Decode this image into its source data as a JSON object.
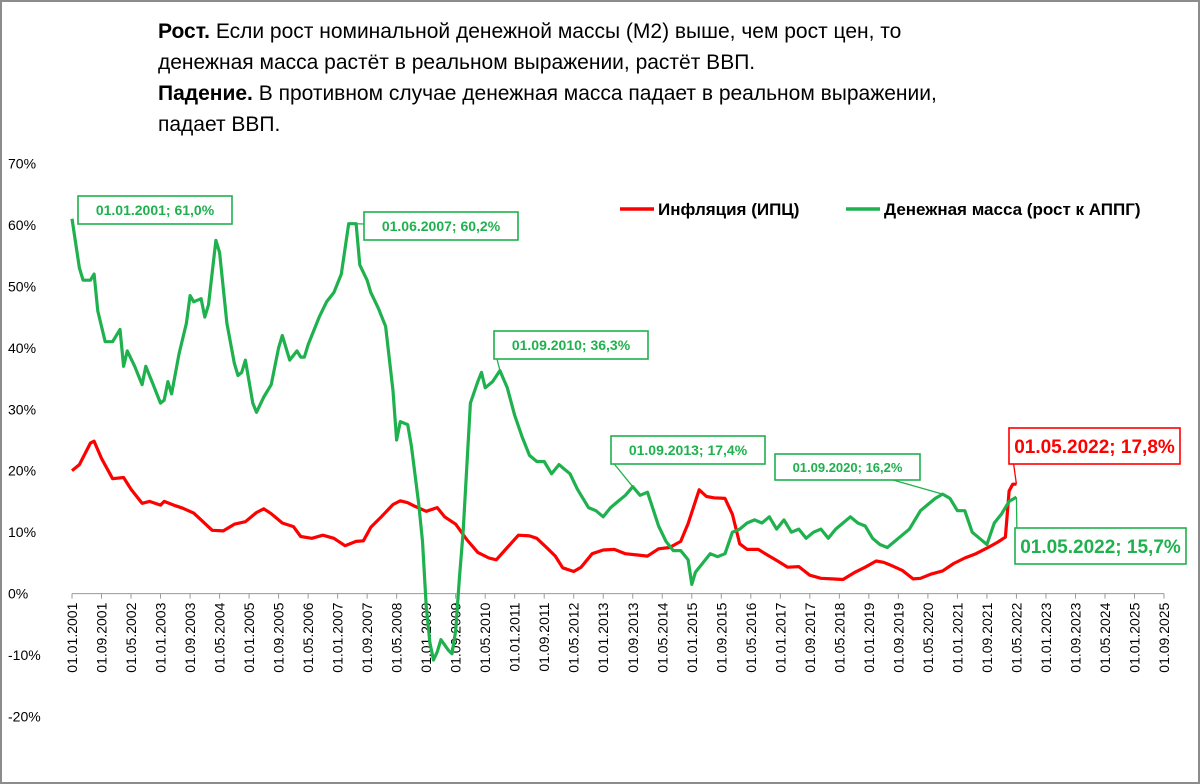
{
  "heading": {
    "growth_label": "Рост.",
    "growth_line1": " Если рост номинальной денежной массы (М2) выше, чем рост цен,  то",
    "growth_line2": "денежная масса растёт в реальном выражении, растёт ВВП.",
    "fall_label": "Падение.",
    "fall_line1": " В противном случае денежная масса падает в реальном выражении,",
    "fall_line2": "падает ВВП."
  },
  "colors": {
    "inflation": "#ff0000",
    "money": "#1fb14e",
    "frame": "#8c8c8c"
  },
  "chart_data": {
    "type": "line",
    "title": "",
    "xlabel": "",
    "ylabel": "",
    "ylim": [
      -20,
      70
    ],
    "y_ticks": [
      "70%",
      "60%",
      "50%",
      "40%",
      "30%",
      "20%",
      "10%",
      "0%",
      "-10%",
      "-20%"
    ],
    "x_ticks": [
      "01.01.2001",
      "01.09.2001",
      "01.05.2002",
      "01.01.2003",
      "01.09.2003",
      "01.05.2004",
      "01.01.2005",
      "01.09.2005",
      "01.05.2006",
      "01.01.2007",
      "01.09.2007",
      "01.05.2008",
      "01.01.2009",
      "01.09.2009",
      "01.05.2010",
      "01.01.2011",
      "01.09.2011",
      "01.05.2012",
      "01.01.2013",
      "01.09.2013",
      "01.05.2014",
      "01.01.2015",
      "01.09.2015",
      "01.05.2016",
      "01.01.2017",
      "01.09.2017",
      "01.05.2018",
      "01.01.2019",
      "01.09.2019",
      "01.05.2020",
      "01.01.2021",
      "01.09.2021",
      "01.05.2022",
      "01.01.2023",
      "01.09.2023",
      "01.05.2024",
      "01.01.2025",
      "01.09.2025"
    ],
    "legend_position": "top-right",
    "series": [
      {
        "name": "Инфляция (ИПЦ)",
        "color": "#ff0000",
        "points": [
          [
            "2001-01",
            20.0
          ],
          [
            "2001-03",
            21.0
          ],
          [
            "2001-06",
            24.5
          ],
          [
            "2001-07",
            24.8
          ],
          [
            "2001-09",
            22.0
          ],
          [
            "2001-12",
            18.7
          ],
          [
            "2002-03",
            18.9
          ],
          [
            "2002-05",
            17.0
          ],
          [
            "2002-08",
            14.7
          ],
          [
            "2002-10",
            15.0
          ],
          [
            "2003-01",
            14.4
          ],
          [
            "2003-02",
            15.0
          ],
          [
            "2003-05",
            14.3
          ],
          [
            "2003-07",
            13.9
          ],
          [
            "2003-10",
            13.1
          ],
          [
            "2003-12",
            12.0
          ],
          [
            "2004-03",
            10.3
          ],
          [
            "2004-06",
            10.2
          ],
          [
            "2004-09",
            11.3
          ],
          [
            "2004-12",
            11.7
          ],
          [
            "2005-03",
            13.2
          ],
          [
            "2005-05",
            13.8
          ],
          [
            "2005-07",
            13.0
          ],
          [
            "2005-10",
            11.5
          ],
          [
            "2006-01",
            10.9
          ],
          [
            "2006-03",
            9.3
          ],
          [
            "2006-06",
            9.0
          ],
          [
            "2006-09",
            9.5
          ],
          [
            "2006-12",
            9.0
          ],
          [
            "2007-03",
            7.8
          ],
          [
            "2007-06",
            8.5
          ],
          [
            "2007-08",
            8.6
          ],
          [
            "2007-10",
            10.8
          ],
          [
            "2008-01",
            12.6
          ],
          [
            "2008-04",
            14.5
          ],
          [
            "2008-06",
            15.1
          ],
          [
            "2008-08",
            14.8
          ],
          [
            "2008-10",
            14.2
          ],
          [
            "2009-01",
            13.4
          ],
          [
            "2009-04",
            14.0
          ],
          [
            "2009-06",
            12.5
          ],
          [
            "2009-09",
            11.3
          ],
          [
            "2009-12",
            8.8
          ],
          [
            "2010-03",
            6.7
          ],
          [
            "2010-06",
            5.8
          ],
          [
            "2010-08",
            5.5
          ],
          [
            "2010-11",
            7.5
          ],
          [
            "2011-02",
            9.5
          ],
          [
            "2011-05",
            9.4
          ],
          [
            "2011-07",
            9.0
          ],
          [
            "2011-10",
            7.3
          ],
          [
            "2011-12",
            6.1
          ],
          [
            "2012-02",
            4.2
          ],
          [
            "2012-05",
            3.6
          ],
          [
            "2012-07",
            4.3
          ],
          [
            "2012-10",
            6.5
          ],
          [
            "2013-01",
            7.1
          ],
          [
            "2013-04",
            7.2
          ],
          [
            "2013-07",
            6.5
          ],
          [
            "2013-10",
            6.3
          ],
          [
            "2014-01",
            6.1
          ],
          [
            "2014-04",
            7.3
          ],
          [
            "2014-07",
            7.5
          ],
          [
            "2014-10",
            8.5
          ],
          [
            "2014-12",
            11.4
          ],
          [
            "2015-03",
            16.9
          ],
          [
            "2015-05",
            15.8
          ],
          [
            "2015-07",
            15.6
          ],
          [
            "2015-10",
            15.5
          ],
          [
            "2015-12",
            12.9
          ],
          [
            "2016-02",
            8.1
          ],
          [
            "2016-04",
            7.2
          ],
          [
            "2016-07",
            7.2
          ],
          [
            "2016-10",
            6.1
          ],
          [
            "2016-12",
            5.4
          ],
          [
            "2017-03",
            4.3
          ],
          [
            "2017-06",
            4.4
          ],
          [
            "2017-09",
            3.0
          ],
          [
            "2017-12",
            2.5
          ],
          [
            "2018-03",
            2.4
          ],
          [
            "2018-06",
            2.3
          ],
          [
            "2018-09",
            3.4
          ],
          [
            "2018-12",
            4.3
          ],
          [
            "2019-03",
            5.3
          ],
          [
            "2019-05",
            5.1
          ],
          [
            "2019-07",
            4.6
          ],
          [
            "2019-10",
            3.8
          ],
          [
            "2020-01",
            2.4
          ],
          [
            "2020-03",
            2.5
          ],
          [
            "2020-06",
            3.2
          ],
          [
            "2020-09",
            3.7
          ],
          [
            "2020-12",
            4.9
          ],
          [
            "2021-03",
            5.8
          ],
          [
            "2021-06",
            6.5
          ],
          [
            "2021-09",
            7.4
          ],
          [
            "2021-12",
            8.4
          ],
          [
            "2022-02",
            9.2
          ],
          [
            "2022-03",
            16.7
          ],
          [
            "2022-04",
            17.8
          ],
          [
            "2022-05",
            17.8
          ]
        ]
      },
      {
        "name": "Денежная масса (рост к АППГ)",
        "color": "#1fb14e",
        "points": [
          [
            "2001-01",
            61.0
          ],
          [
            "2001-03",
            53.0
          ],
          [
            "2001-04",
            51.0
          ],
          [
            "2001-06",
            51.0
          ],
          [
            "2001-07",
            52.0
          ],
          [
            "2001-08",
            46.0
          ],
          [
            "2001-10",
            41.0
          ],
          [
            "2001-12",
            41.0
          ],
          [
            "2002-02",
            43.0
          ],
          [
            "2002-03",
            37.0
          ],
          [
            "2002-04",
            39.5
          ],
          [
            "2002-06",
            37.0
          ],
          [
            "2002-08",
            34.0
          ],
          [
            "2002-09",
            37.0
          ],
          [
            "2002-11",
            34.0
          ],
          [
            "2003-01",
            31.0
          ],
          [
            "2003-02",
            31.5
          ],
          [
            "2003-03",
            34.5
          ],
          [
            "2003-04",
            32.5
          ],
          [
            "2003-06",
            39.0
          ],
          [
            "2003-08",
            44.0
          ],
          [
            "2003-09",
            48.5
          ],
          [
            "2003-10",
            47.5
          ],
          [
            "2003-12",
            48.0
          ],
          [
            "2004-01",
            45.0
          ],
          [
            "2004-02",
            47.0
          ],
          [
            "2004-04",
            57.5
          ],
          [
            "2004-05",
            55.5
          ],
          [
            "2004-07",
            44.0
          ],
          [
            "2004-09",
            37.5
          ],
          [
            "2004-10",
            35.5
          ],
          [
            "2004-11",
            36.0
          ],
          [
            "2004-12",
            38.0
          ],
          [
            "2005-02",
            31.0
          ],
          [
            "2005-03",
            29.5
          ],
          [
            "2005-05",
            32.0
          ],
          [
            "2005-07",
            34.0
          ],
          [
            "2005-09",
            40.0
          ],
          [
            "2005-10",
            42.0
          ],
          [
            "2005-12",
            38.0
          ],
          [
            "2006-02",
            39.5
          ],
          [
            "2006-03",
            38.5
          ],
          [
            "2006-04",
            38.5
          ],
          [
            "2006-05",
            40.5
          ],
          [
            "2006-06",
            42.0
          ],
          [
            "2006-08",
            45.0
          ],
          [
            "2006-10",
            47.5
          ],
          [
            "2006-12",
            49.0
          ],
          [
            "2007-02",
            52.0
          ],
          [
            "2007-04",
            60.2
          ],
          [
            "2007-06",
            60.2
          ],
          [
            "2007-07",
            53.5
          ],
          [
            "2007-09",
            51.0
          ],
          [
            "2007-10",
            49.0
          ],
          [
            "2007-12",
            46.5
          ],
          [
            "2008-02",
            43.5
          ],
          [
            "2008-04",
            33.0
          ],
          [
            "2008-05",
            25.0
          ],
          [
            "2008-06",
            28.0
          ],
          [
            "2008-08",
            27.5
          ],
          [
            "2008-09",
            24.0
          ],
          [
            "2008-11",
            14.5
          ],
          [
            "2008-12",
            8.5
          ],
          [
            "2009-01",
            -2.0
          ],
          [
            "2009-02",
            -8.0
          ],
          [
            "2009-03",
            -10.8
          ],
          [
            "2009-04",
            -9.5
          ],
          [
            "2009-05",
            -7.5
          ],
          [
            "2009-07",
            -9.2
          ],
          [
            "2009-08",
            -9.8
          ],
          [
            "2009-09",
            -6.0
          ],
          [
            "2009-10",
            2.5
          ],
          [
            "2009-11",
            10.0
          ],
          [
            "2010-01",
            31.0
          ],
          [
            "2010-03",
            34.5
          ],
          [
            "2010-04",
            36.0
          ],
          [
            "2010-05",
            33.5
          ],
          [
            "2010-07",
            34.5
          ],
          [
            "2010-09",
            36.3
          ],
          [
            "2010-11",
            33.5
          ],
          [
            "2011-01",
            29.0
          ],
          [
            "2011-03",
            25.5
          ],
          [
            "2011-05",
            22.5
          ],
          [
            "2011-07",
            21.5
          ],
          [
            "2011-09",
            21.5
          ],
          [
            "2011-11",
            19.5
          ],
          [
            "2012-01",
            21.0
          ],
          [
            "2012-04",
            19.5
          ],
          [
            "2012-06",
            17.0
          ],
          [
            "2012-09",
            14.0
          ],
          [
            "2012-11",
            13.5
          ],
          [
            "2013-01",
            12.5
          ],
          [
            "2013-03",
            14.0
          ],
          [
            "2013-05",
            15.0
          ],
          [
            "2013-07",
            16.0
          ],
          [
            "2013-09",
            17.4
          ],
          [
            "2013-11",
            16.0
          ],
          [
            "2014-01",
            16.5
          ],
          [
            "2014-04",
            11.0
          ],
          [
            "2014-06",
            8.5
          ],
          [
            "2014-08",
            7.0
          ],
          [
            "2014-10",
            7.0
          ],
          [
            "2014-12",
            5.5
          ],
          [
            "2015-01",
            1.5
          ],
          [
            "2015-02",
            3.5
          ],
          [
            "2015-04",
            5.0
          ],
          [
            "2015-06",
            6.5
          ],
          [
            "2015-08",
            6.0
          ],
          [
            "2015-10",
            6.5
          ],
          [
            "2015-12",
            10.0
          ],
          [
            "2016-02",
            10.5
          ],
          [
            "2016-04",
            11.5
          ],
          [
            "2016-06",
            12.0
          ],
          [
            "2016-08",
            11.5
          ],
          [
            "2016-10",
            12.5
          ],
          [
            "2016-12",
            10.5
          ],
          [
            "2017-02",
            12.0
          ],
          [
            "2017-04",
            10.0
          ],
          [
            "2017-06",
            10.5
          ],
          [
            "2017-08",
            9.0
          ],
          [
            "2017-10",
            10.0
          ],
          [
            "2017-12",
            10.5
          ],
          [
            "2018-02",
            9.0
          ],
          [
            "2018-04",
            10.5
          ],
          [
            "2018-06",
            11.5
          ],
          [
            "2018-08",
            12.5
          ],
          [
            "2018-10",
            11.5
          ],
          [
            "2018-12",
            11.0
          ],
          [
            "2019-02",
            9.0
          ],
          [
            "2019-04",
            8.0
          ],
          [
            "2019-06",
            7.5
          ],
          [
            "2019-08",
            8.5
          ],
          [
            "2019-10",
            9.5
          ],
          [
            "2019-12",
            10.5
          ],
          [
            "2020-03",
            13.5
          ],
          [
            "2020-05",
            14.5
          ],
          [
            "2020-07",
            15.5
          ],
          [
            "2020-09",
            16.2
          ],
          [
            "2020-11",
            15.5
          ],
          [
            "2021-01",
            13.5
          ],
          [
            "2021-03",
            13.5
          ],
          [
            "2021-05",
            10.0
          ],
          [
            "2021-07",
            9.0
          ],
          [
            "2021-09",
            8.0
          ],
          [
            "2021-11",
            11.5
          ],
          [
            "2022-01",
            13.0
          ],
          [
            "2022-03",
            15.0
          ],
          [
            "2022-05",
            15.7
          ]
        ]
      }
    ],
    "annotations": [
      {
        "text": "01.01.2001; 61,0%",
        "series": 1,
        "date": "2001-01",
        "value": 61.0,
        "size": "small"
      },
      {
        "text": "01.06.2007; 60,2%",
        "series": 1,
        "date": "2007-06",
        "value": 60.2,
        "size": "small"
      },
      {
        "text": "01.09.2010; 36,3%",
        "series": 1,
        "date": "2010-09",
        "value": 36.3,
        "size": "small"
      },
      {
        "text": "01.09.2013; 17,4%",
        "series": 1,
        "date": "2013-09",
        "value": 17.4,
        "size": "small"
      },
      {
        "text": "01.09.2020; 16,2%",
        "series": 1,
        "date": "2020-09",
        "value": 16.2,
        "size": "tiny"
      },
      {
        "text": "01.05.2022; 17,8%",
        "series": 0,
        "date": "2022-05",
        "value": 17.8,
        "size": "big"
      },
      {
        "text": "01.05.2022; 15,7%",
        "series": 1,
        "date": "2022-05",
        "value": 15.7,
        "size": "big"
      }
    ]
  }
}
